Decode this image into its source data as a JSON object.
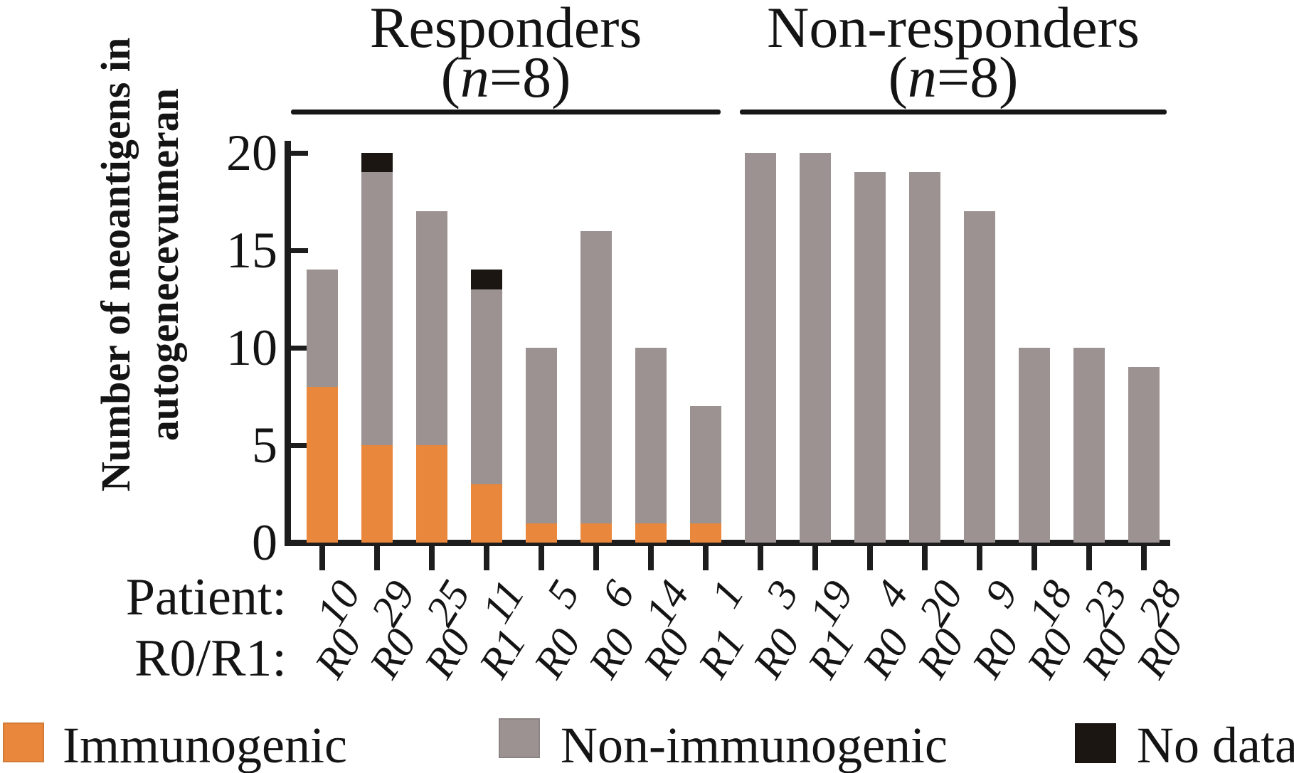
{
  "figure_title": "Number of neoantigens in autogenecevumeran by patient",
  "header": {
    "groups": [
      {
        "title": "Responders",
        "n_pre": "(",
        "n_var": "n",
        "n_post": "=8)"
      },
      {
        "title": "Non-responders",
        "n_pre": "(",
        "n_var": "n",
        "n_post": "=8)"
      }
    ]
  },
  "y_axis": {
    "title_lines": [
      "Number of neoantigens in",
      "autogenecevumeran"
    ],
    "ticks": [
      0,
      5,
      10,
      15,
      20
    ],
    "max": 20
  },
  "x_axis": {
    "row1_label": "Patient:",
    "row2_label": "R0/R1:"
  },
  "chart_data": {
    "type": "bar",
    "stacked": true,
    "ylim": [
      0,
      20
    ],
    "y_ticks": [
      0,
      5,
      10,
      15,
      20
    ],
    "grid": false,
    "legend_position": "bottom",
    "groups": [
      {
        "label": "Responders",
        "n": 8,
        "patients": [
          "10",
          "29",
          "25",
          "11",
          "5",
          "6",
          "14",
          "1"
        ]
      },
      {
        "label": "Non-responders",
        "n": 8,
        "patients": [
          "3",
          "19",
          "4",
          "20",
          "9",
          "18",
          "23",
          "28"
        ]
      }
    ],
    "categories": [
      "10",
      "29",
      "25",
      "11",
      "5",
      "6",
      "14",
      "1",
      "3",
      "19",
      "4",
      "20",
      "9",
      "18",
      "23",
      "28"
    ],
    "resection_status": [
      "R0",
      "R0",
      "R0",
      "R1",
      "R0",
      "R0",
      "R0",
      "R1",
      "R0",
      "R1",
      "R0",
      "R0",
      "R0",
      "R0",
      "R0",
      "R0"
    ],
    "series": [
      {
        "name": "Immunogenic",
        "color": "#E9873C",
        "values": [
          8,
          5,
          5,
          3,
          1,
          1,
          1,
          1,
          0,
          0,
          0,
          0,
          0,
          0,
          0,
          0
        ]
      },
      {
        "name": "Non-immunogenic",
        "color": "#9C9292",
        "values": [
          6,
          14,
          12,
          10,
          9,
          15,
          9,
          6,
          20,
          20,
          19,
          19,
          17,
          10,
          10,
          9
        ]
      },
      {
        "name": "No data",
        "color": "#1B1611",
        "values": [
          0,
          1,
          0,
          1,
          0,
          0,
          0,
          0,
          0,
          0,
          0,
          0,
          0,
          0,
          0,
          0
        ]
      }
    ],
    "totals": [
      14,
      20,
      17,
      14,
      10,
      16,
      10,
      7,
      20,
      20,
      19,
      19,
      17,
      10,
      10,
      9
    ]
  },
  "legend": {
    "items": [
      {
        "label": "Immunogenic",
        "color": "#E9873C"
      },
      {
        "label": "Non-immunogenic",
        "color": "#9C9292"
      },
      {
        "label": "No data",
        "color": "#1B1611"
      }
    ]
  }
}
